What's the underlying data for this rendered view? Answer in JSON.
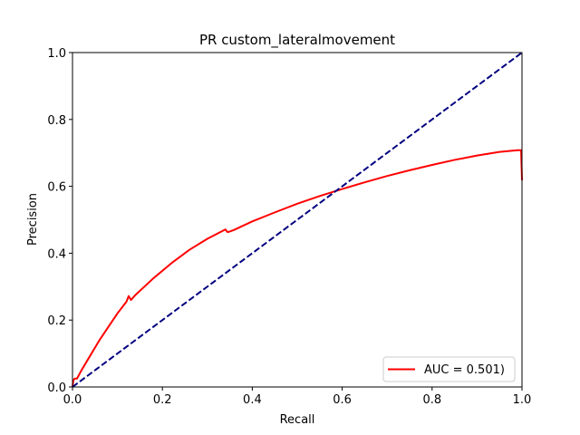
{
  "chart_data": {
    "type": "line",
    "title": "PR custom_lateralmovement",
    "xlabel": "Recall",
    "ylabel": "Precision",
    "xlim": [
      0,
      1
    ],
    "ylim": [
      0,
      1
    ],
    "xticks": [
      "0.0",
      "0.2",
      "0.4",
      "0.6",
      "0.8",
      "1.0"
    ],
    "yticks": [
      "0.0",
      "0.2",
      "0.4",
      "0.6",
      "0.8",
      "1.0"
    ],
    "grid": false,
    "legend_position": "lower-right",
    "series": [
      {
        "name": "AUC = 0.501)",
        "color": "#ff0000",
        "style": "solid",
        "x": [
          0.0,
          0.002,
          0.005,
          0.01,
          0.02,
          0.04,
          0.06,
          0.08,
          0.1,
          0.12,
          0.125,
          0.13,
          0.14,
          0.18,
          0.22,
          0.26,
          0.3,
          0.34,
          0.345,
          0.35,
          0.36,
          0.4,
          0.45,
          0.5,
          0.55,
          0.6,
          0.65,
          0.7,
          0.75,
          0.8,
          0.85,
          0.9,
          0.95,
          0.99,
          0.998,
          1.0
        ],
        "y": [
          0.0,
          0.02,
          0.025,
          0.025,
          0.05,
          0.095,
          0.14,
          0.18,
          0.22,
          0.255,
          0.272,
          0.26,
          0.275,
          0.325,
          0.37,
          0.41,
          0.443,
          0.471,
          0.463,
          0.465,
          0.47,
          0.495,
          0.522,
          0.548,
          0.571,
          0.592,
          0.612,
          0.631,
          0.648,
          0.664,
          0.679,
          0.692,
          0.703,
          0.708,
          0.708,
          0.618
        ]
      },
      {
        "name": "",
        "color": "#000080",
        "style": "dashed",
        "x": [
          0,
          1
        ],
        "y": [
          0,
          1
        ]
      }
    ]
  }
}
